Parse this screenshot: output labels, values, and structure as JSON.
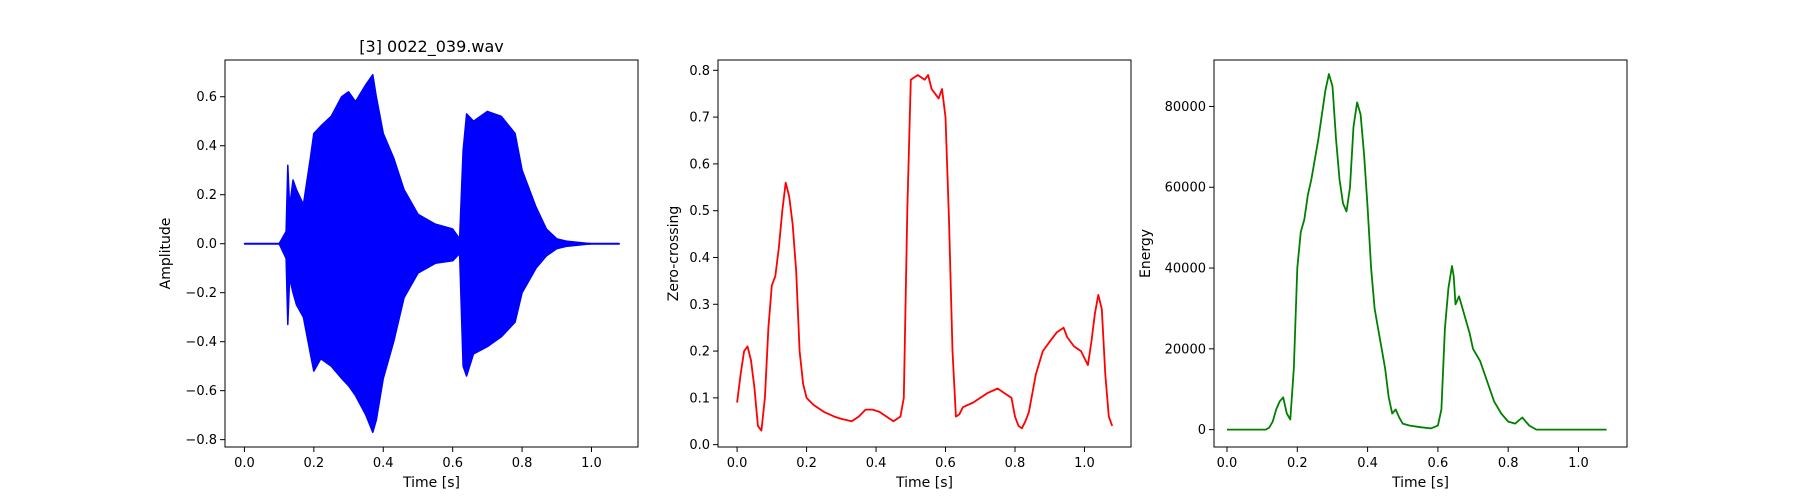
{
  "chart_data": [
    {
      "type": "line",
      "title": "[3] 0022_039.wav",
      "xlabel": "Time [s]",
      "ylabel": "Amplitude",
      "xlim": [
        -0.056,
        1.134
      ],
      "ylim": [
        -0.83,
        0.75
      ],
      "xticks": [
        0.0,
        0.2,
        0.4,
        0.6,
        0.8,
        1.0
      ],
      "xtick_labels": [
        "0.0",
        "0.2",
        "0.4",
        "0.6",
        "0.8",
        "1.0"
      ],
      "yticks": [
        -0.8,
        -0.6,
        -0.4,
        -0.2,
        0.0,
        0.2,
        0.4,
        0.6
      ],
      "ytick_labels": [
        "−0.8",
        "−0.6",
        "−0.4",
        "−0.2",
        "0.0",
        "0.2",
        "0.4",
        "0.6"
      ],
      "color": "#0000ff",
      "render": "waveform",
      "series": [
        {
          "x": [
            0.0,
            0.1,
            0.12,
            0.125,
            0.13,
            0.14,
            0.15,
            0.17,
            0.19,
            0.2,
            0.22,
            0.25,
            0.28,
            0.3,
            0.32,
            0.35,
            0.37,
            0.38,
            0.4,
            0.43,
            0.46,
            0.5,
            0.55,
            0.6,
            0.62,
            0.63,
            0.64,
            0.66,
            0.7,
            0.74,
            0.78,
            0.8,
            0.84,
            0.87,
            0.9,
            0.93,
            1.0,
            1.08
          ],
          "upper": [
            0.0,
            0.0,
            0.05,
            0.32,
            0.15,
            0.26,
            0.22,
            0.16,
            0.35,
            0.45,
            0.48,
            0.52,
            0.6,
            0.62,
            0.58,
            0.65,
            0.69,
            0.6,
            0.45,
            0.35,
            0.22,
            0.12,
            0.08,
            0.06,
            0.02,
            0.38,
            0.53,
            0.5,
            0.54,
            0.52,
            0.45,
            0.3,
            0.15,
            0.06,
            0.02,
            0.01,
            0.0,
            0.0
          ],
          "lower": [
            0.0,
            0.0,
            -0.06,
            -0.33,
            -0.14,
            -0.2,
            -0.25,
            -0.3,
            -0.45,
            -0.52,
            -0.47,
            -0.5,
            -0.55,
            -0.58,
            -0.62,
            -0.7,
            -0.77,
            -0.72,
            -0.55,
            -0.4,
            -0.22,
            -0.12,
            -0.08,
            -0.07,
            -0.04,
            -0.5,
            -0.54,
            -0.45,
            -0.42,
            -0.38,
            -0.32,
            -0.2,
            -0.1,
            -0.05,
            -0.02,
            -0.01,
            0.0,
            0.0
          ]
        }
      ]
    },
    {
      "type": "line",
      "title": "",
      "xlabel": "Time [s]",
      "ylabel": "Zero-crossing",
      "xlim": [
        -0.055,
        1.134
      ],
      "ylim": [
        -0.005,
        0.822
      ],
      "xticks": [
        0.0,
        0.2,
        0.4,
        0.6,
        0.8,
        1.0
      ],
      "xtick_labels": [
        "0.0",
        "0.2",
        "0.4",
        "0.6",
        "0.8",
        "1.0"
      ],
      "yticks": [
        0.0,
        0.1,
        0.2,
        0.3,
        0.4,
        0.5,
        0.6,
        0.7,
        0.8
      ],
      "ytick_labels": [
        "0.0",
        "0.1",
        "0.2",
        "0.3",
        "0.4",
        "0.5",
        "0.6",
        "0.7",
        "0.8"
      ],
      "color": "#ff0000",
      "series": [
        {
          "x": [
            0.0,
            0.01,
            0.02,
            0.03,
            0.04,
            0.05,
            0.06,
            0.07,
            0.08,
            0.09,
            0.1,
            0.11,
            0.12,
            0.13,
            0.14,
            0.15,
            0.16,
            0.17,
            0.18,
            0.19,
            0.2,
            0.22,
            0.25,
            0.28,
            0.3,
            0.33,
            0.35,
            0.37,
            0.39,
            0.41,
            0.43,
            0.45,
            0.47,
            0.48,
            0.49,
            0.5,
            0.52,
            0.54,
            0.55,
            0.56,
            0.57,
            0.58,
            0.59,
            0.6,
            0.61,
            0.62,
            0.63,
            0.64,
            0.65,
            0.68,
            0.7,
            0.72,
            0.75,
            0.77,
            0.79,
            0.8,
            0.81,
            0.82,
            0.83,
            0.84,
            0.86,
            0.88,
            0.9,
            0.92,
            0.94,
            0.95,
            0.97,
            0.99,
            1.01,
            1.02,
            1.03,
            1.04,
            1.05,
            1.06,
            1.07,
            1.08
          ],
          "y": [
            0.09,
            0.15,
            0.2,
            0.21,
            0.18,
            0.12,
            0.04,
            0.03,
            0.1,
            0.25,
            0.34,
            0.36,
            0.42,
            0.5,
            0.56,
            0.53,
            0.47,
            0.37,
            0.2,
            0.13,
            0.1,
            0.085,
            0.07,
            0.06,
            0.055,
            0.05,
            0.06,
            0.075,
            0.075,
            0.07,
            0.06,
            0.05,
            0.06,
            0.1,
            0.5,
            0.78,
            0.79,
            0.78,
            0.79,
            0.76,
            0.75,
            0.74,
            0.76,
            0.7,
            0.48,
            0.2,
            0.06,
            0.065,
            0.08,
            0.09,
            0.1,
            0.11,
            0.12,
            0.11,
            0.1,
            0.06,
            0.04,
            0.035,
            0.05,
            0.07,
            0.15,
            0.2,
            0.22,
            0.24,
            0.25,
            0.23,
            0.21,
            0.2,
            0.17,
            0.22,
            0.28,
            0.32,
            0.29,
            0.15,
            0.06,
            0.04
          ]
        }
      ]
    },
    {
      "type": "line",
      "title": "",
      "xlabel": "Time [s]",
      "ylabel": "Energy",
      "xlim": [
        -0.037,
        1.138
      ],
      "ylim": [
        -4300,
        91500
      ],
      "xticks": [
        0.0,
        0.2,
        0.4,
        0.6,
        0.8,
        1.0
      ],
      "xtick_labels": [
        "0.0",
        "0.2",
        "0.4",
        "0.6",
        "0.8",
        "1.0"
      ],
      "yticks": [
        0,
        20000,
        40000,
        60000,
        80000
      ],
      "ytick_labels": [
        "0",
        "20000",
        "40000",
        "60000",
        "80000"
      ],
      "color": "#008000",
      "series": [
        {
          "x": [
            0.0,
            0.11,
            0.12,
            0.13,
            0.14,
            0.15,
            0.16,
            0.17,
            0.18,
            0.19,
            0.2,
            0.21,
            0.22,
            0.23,
            0.24,
            0.25,
            0.26,
            0.27,
            0.28,
            0.29,
            0.3,
            0.31,
            0.32,
            0.33,
            0.34,
            0.35,
            0.36,
            0.37,
            0.38,
            0.39,
            0.4,
            0.41,
            0.42,
            0.43,
            0.44,
            0.45,
            0.46,
            0.47,
            0.48,
            0.49,
            0.5,
            0.52,
            0.55,
            0.58,
            0.6,
            0.61,
            0.62,
            0.63,
            0.64,
            0.645,
            0.65,
            0.66,
            0.67,
            0.68,
            0.69,
            0.7,
            0.72,
            0.74,
            0.76,
            0.78,
            0.8,
            0.82,
            0.84,
            0.86,
            0.88,
            1.0,
            1.08
          ],
          "y": [
            0,
            0,
            500,
            2000,
            5000,
            7000,
            8000,
            4000,
            2500,
            15000,
            40000,
            49000,
            52000,
            58000,
            62000,
            67000,
            72000,
            78000,
            84000,
            88000,
            85000,
            72000,
            62000,
            56000,
            54000,
            60000,
            75000,
            81000,
            78000,
            68000,
            55000,
            40000,
            30000,
            25000,
            20000,
            15000,
            8000,
            4000,
            5000,
            3000,
            1500,
            1000,
            600,
            300,
            1000,
            5000,
            25000,
            35000,
            40500,
            38000,
            31000,
            33000,
            30000,
            27000,
            24000,
            20000,
            17000,
            12000,
            7000,
            4000,
            2000,
            1500,
            3000,
            1000,
            0,
            0,
            0
          ]
        }
      ]
    }
  ]
}
